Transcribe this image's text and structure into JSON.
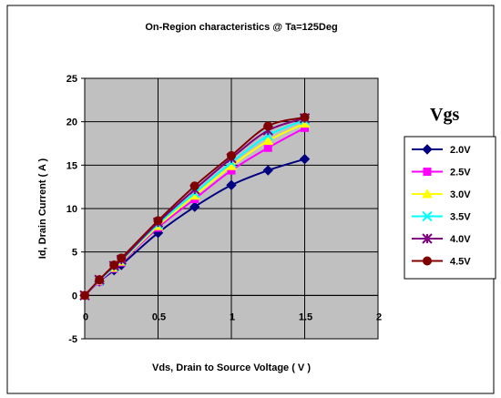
{
  "chart_data": {
    "type": "line",
    "title": "On-Region characteristics @ Ta=125Deg",
    "xlabel": "Vds, Drain to Source Voltage ( V )",
    "ylabel": "Id, Drain Current ( A )",
    "xlim": [
      0,
      2
    ],
    "ylim": [
      -5,
      25
    ],
    "xticks": [
      "0",
      "0.5",
      "1",
      "1.5",
      "2"
    ],
    "yticks": [
      "-5",
      "0",
      "5",
      "10",
      "15",
      "20",
      "25"
    ],
    "grid": true,
    "legend_position": "right",
    "legend_title": "Vgs",
    "plot_background": "#c0c0c0",
    "x": [
      0,
      0.1,
      0.2,
      0.25,
      0.5,
      0.75,
      1.0,
      1.25,
      1.5
    ],
    "series": [
      {
        "name": "2.0V",
        "color": "#000080",
        "marker": "diamond",
        "values": [
          0,
          1.6,
          2.9,
          3.5,
          7.2,
          10.2,
          12.7,
          14.4,
          15.7
        ]
      },
      {
        "name": "2.5V",
        "color": "#ff00ff",
        "marker": "square",
        "values": [
          0,
          1.6,
          3.1,
          3.8,
          7.8,
          11.1,
          14.4,
          17.0,
          19.3
        ]
      },
      {
        "name": "3.0V",
        "color": "#ffff00",
        "marker": "triangle",
        "values": [
          0,
          1.7,
          3.2,
          3.9,
          8.0,
          11.5,
          14.9,
          17.8,
          19.8
        ]
      },
      {
        "name": "3.5V",
        "color": "#00ffff",
        "marker": "x",
        "values": [
          0,
          1.7,
          3.3,
          4.0,
          8.2,
          11.8,
          15.3,
          18.4,
          20.2
        ]
      },
      {
        "name": "4.0V",
        "color": "#800080",
        "marker": "star",
        "values": [
          0,
          1.8,
          3.4,
          4.1,
          8.4,
          12.2,
          15.8,
          19.0,
          20.4
        ]
      },
      {
        "name": "4.5V",
        "color": "#800000",
        "marker": "circle",
        "values": [
          0,
          1.8,
          3.5,
          4.3,
          8.6,
          12.6,
          16.1,
          19.5,
          20.5
        ]
      }
    ]
  }
}
